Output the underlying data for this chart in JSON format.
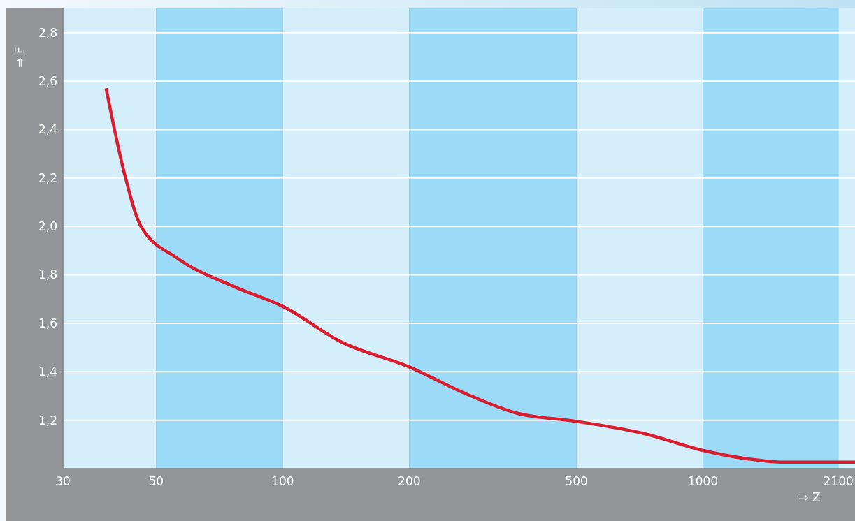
{
  "chart_data": {
    "type": "line",
    "xlabel": "⇒ Z",
    "ylabel": "⇒ F",
    "xlim": [
      30,
      2300
    ],
    "xticks": [
      30,
      50,
      100,
      200,
      500,
      1000,
      2100
    ],
    "ylim": [
      1.0,
      2.9
    ],
    "yticks": [
      {
        "value": 1.2,
        "label": "1,2"
      },
      {
        "value": 1.4,
        "label": "1,4"
      },
      {
        "value": 1.6,
        "label": "1,6"
      },
      {
        "value": 1.8,
        "label": "1,8"
      },
      {
        "value": 2.0,
        "label": "2,0"
      },
      {
        "value": 2.2,
        "label": "2,2"
      },
      {
        "value": 2.4,
        "label": "2,4"
      },
      {
        "value": 2.6,
        "label": "2,6"
      },
      {
        "value": 2.8,
        "label": "2,8"
      }
    ],
    "grid": "y",
    "log": "x",
    "marker": "none",
    "line_style": "solid",
    "bands": [
      {
        "axis": "x",
        "from": 30,
        "to": 50,
        "color": "#d4eefa"
      },
      {
        "axis": "x",
        "from": 100,
        "to": 200,
        "color": "#d4eefa"
      },
      {
        "axis": "x",
        "from": 500,
        "to": 1000,
        "color": "#d4eefa"
      },
      {
        "axis": "x",
        "from": 2100,
        "to": 2300,
        "color": "#d4eefa"
      },
      {
        "axis": "x",
        "from": 50,
        "to": 100,
        "color": "#9cdbf7"
      },
      {
        "axis": "x",
        "from": 200,
        "to": 500,
        "color": "#9cdbf7"
      },
      {
        "axis": "x",
        "from": 1000,
        "to": 2100,
        "color": "#9cdbf7"
      }
    ],
    "series": [
      {
        "color": "#d91c2e",
        "x": [
          38,
          42,
          46,
          56,
          77,
          100,
          139,
          200,
          272,
          359,
          500,
          724,
          1000,
          1351,
          1532,
          2100,
          2300
        ],
        "values": [
          2.57,
          2.22,
          2.0,
          1.87,
          1.75,
          1.67,
          1.52,
          1.42,
          1.31,
          1.23,
          1.195,
          1.145,
          1.075,
          1.035,
          1.027,
          1.027,
          1.027
        ]
      }
    ]
  }
}
